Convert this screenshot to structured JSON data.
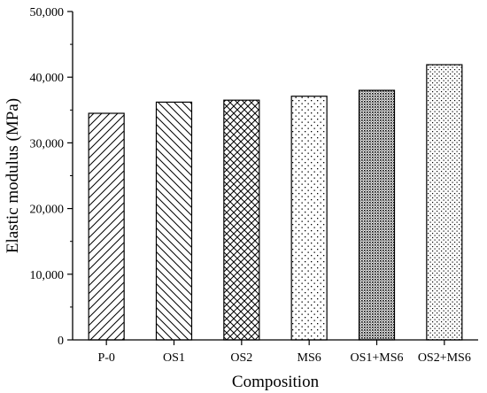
{
  "chart_data": {
    "type": "bar",
    "title": "",
    "xlabel": "Composition",
    "ylabel": "Elastic modulus (MPa)",
    "ylim": [
      0,
      50000
    ],
    "yticks": [
      0,
      10000,
      20000,
      30000,
      40000,
      50000
    ],
    "ytick_labels": [
      "0",
      "10,000",
      "20,000",
      "30,000",
      "40,000",
      "50,000"
    ],
    "categories": [
      "P-0",
      "OS1",
      "OS2",
      "MS6",
      "OS1+MS6",
      "OS2+MS6"
    ],
    "values": [
      34500,
      36200,
      36500,
      37100,
      38000,
      41900
    ],
    "bar_patterns": [
      "diag-forward",
      "diag-backward",
      "crosshatch",
      "sparse-dots",
      "dense-dots",
      "medium-dots"
    ],
    "grid": false,
    "legend": "none"
  }
}
